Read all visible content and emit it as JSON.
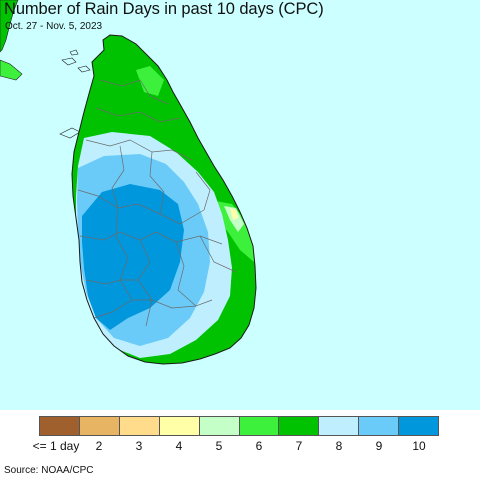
{
  "header": {
    "title": "Number of Rain Days in past 10 days (CPC)",
    "subtitle": "Oct. 27 - Nov. 5, 2023"
  },
  "map": {
    "region": "Sri Lanka",
    "background_color": "#ccffff",
    "land_base_color": "#00c200"
  },
  "legend": {
    "items": [
      {
        "label": "<= 1 day",
        "color": "#a0602d"
      },
      {
        "label": "2",
        "color": "#e7b464"
      },
      {
        "label": "3",
        "color": "#ffdc8c"
      },
      {
        "label": "4",
        "color": "#ffffa8"
      },
      {
        "label": "5",
        "color": "#c4ffc8"
      },
      {
        "label": "6",
        "color": "#3cf03c"
      },
      {
        "label": "7",
        "color": "#00c200"
      },
      {
        "label": "8",
        "color": "#bfefff"
      },
      {
        "label": "9",
        "color": "#6acbf9"
      },
      {
        "label": "10",
        "color": "#0097dc"
      }
    ]
  },
  "footer": {
    "source": "Source: NOAA/CPC"
  }
}
